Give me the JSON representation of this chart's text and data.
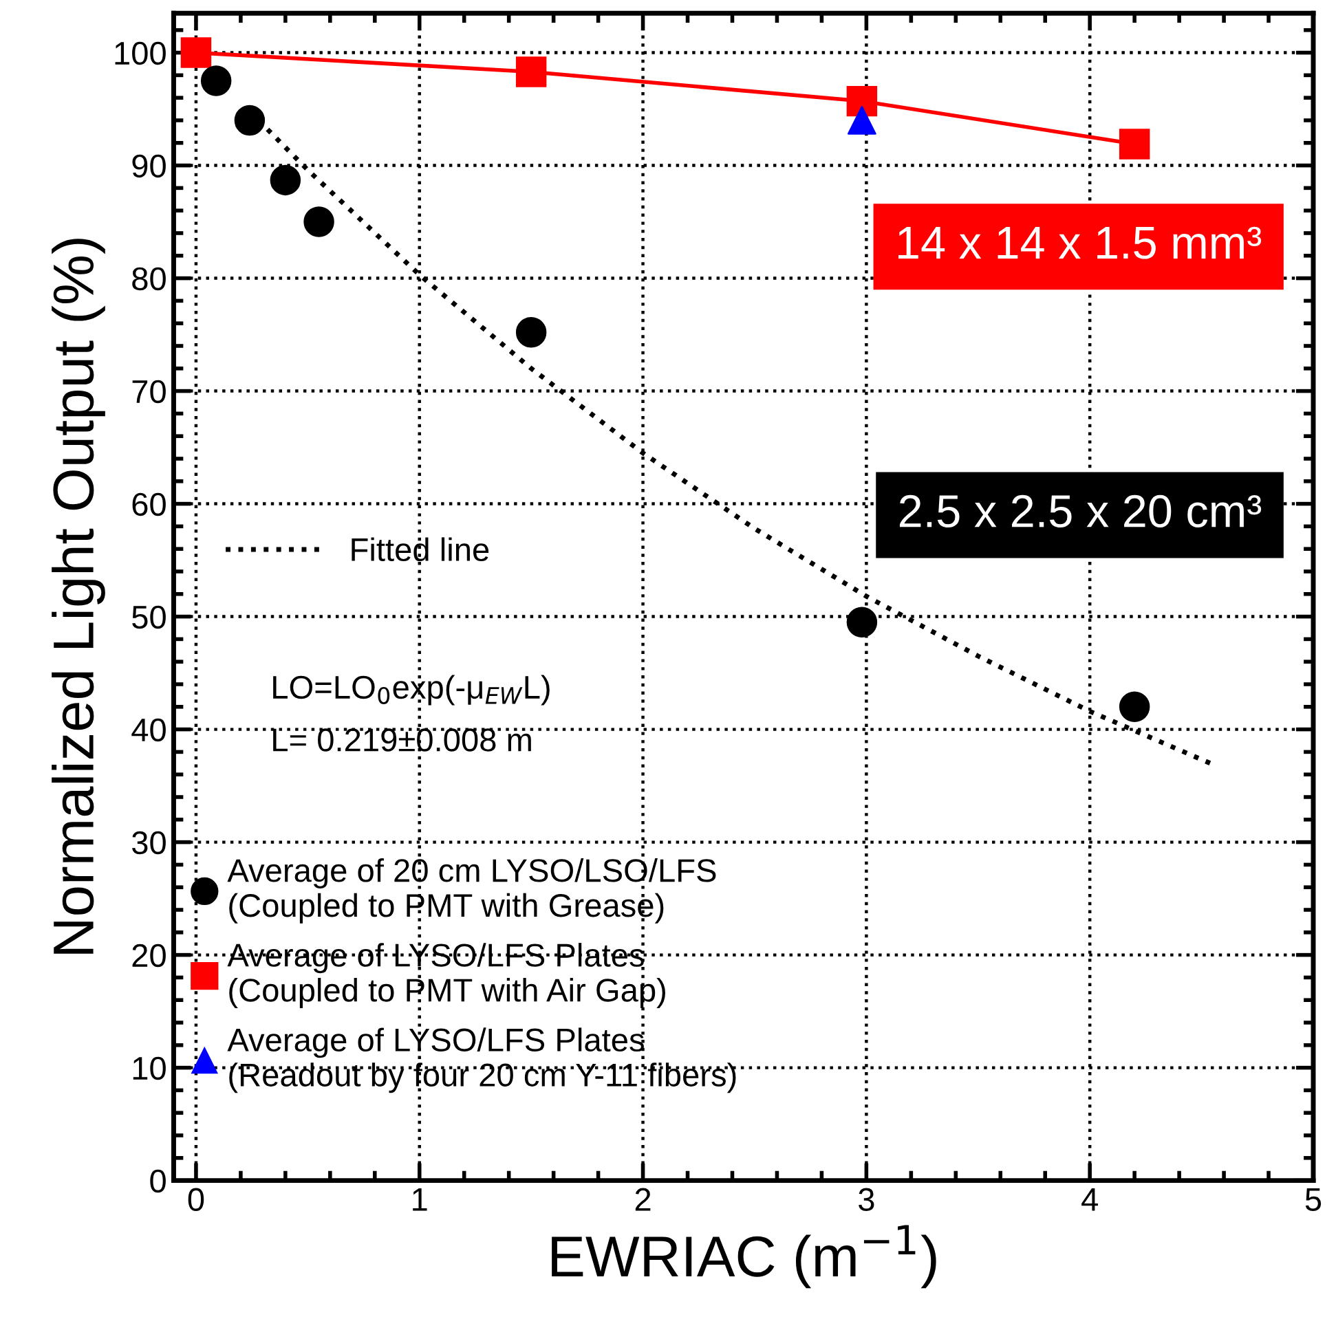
{
  "chart_data": {
    "type": "scatter",
    "xlabel": "EWRIAC (m$^{−1}$)",
    "ylabel": "Normalized Light Output (%)",
    "xlim": [
      -0.1,
      5
    ],
    "ylim": [
      0,
      103.5
    ],
    "xticks": [
      0,
      1,
      2,
      3,
      4,
      5
    ],
    "yticks": [
      0,
      10,
      20,
      30,
      40,
      50,
      60,
      70,
      80,
      90,
      100
    ],
    "grid": true,
    "legend": "bottom left",
    "series": [
      {
        "name": "Fitted line",
        "type": "line",
        "color": "#000000",
        "marker": "none",
        "line_style": "dotted",
        "x": [
          0.32,
          0.5,
          1,
          1.5,
          2,
          2.5,
          3,
          3.5,
          4,
          4.55
        ],
        "values": [
          93.2,
          89.6,
          80.3,
          72,
          64.5,
          57.8,
          51.8,
          46.5,
          41.6,
          36.9
        ]
      },
      {
        "name": "Average of 20 cm LYSO/LSO/LFS\n(Coupled to PMT with Grease)",
        "color": "#000000",
        "marker": "circle",
        "x": [
          0.09,
          0.24,
          0.4,
          0.55,
          1.5,
          2.98,
          4.2
        ],
        "values": [
          97.5,
          94,
          88.7,
          85,
          75.2,
          49.5,
          42
        ]
      },
      {
        "name": "Average of LYSO/LFS Plates\n(Coupled to PMT with Air Gap)",
        "type": "line",
        "color": "#ff0000",
        "marker": "square",
        "line_style": "solid",
        "x": [
          0,
          1.5,
          2.98,
          4.2
        ],
        "values": [
          100,
          98.3,
          95.7,
          91.9
        ]
      },
      {
        "name": "Average of LYSO/LFS Plates\n(Readout by four 20 cm Y-11 fibers)",
        "type": "scatter",
        "color": "#0000ff",
        "marker": "triangle",
        "x": [
          2.98
        ],
        "values": [
          94
        ]
      }
    ],
    "annotations": [
      "LO=LO$_{0}$exp(-μ$_{EW}$L)",
      "L= 0.219±0.008 m",
      "14 x 14 x 1.5 mm³",
      "2.5 x 2.5 x 20 cm³"
    ]
  }
}
